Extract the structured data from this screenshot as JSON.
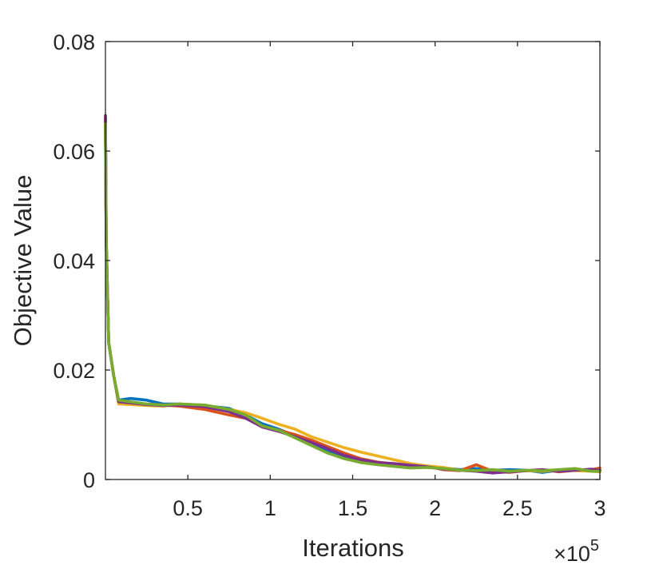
{
  "chart_data": {
    "type": "line",
    "title": "",
    "xlabel": "Iterations",
    "ylabel": "Objective Value",
    "x_exponent_label": "×10",
    "x_exponent": "5",
    "xlim": [
      0,
      3
    ],
    "ylim": [
      0,
      0.08
    ],
    "x_ticks": [
      0.5,
      1,
      1.5,
      2,
      2.5,
      3
    ],
    "x_tick_labels": [
      "0.5",
      "1",
      "1.5",
      "2",
      "2.5",
      "3"
    ],
    "y_ticks": [
      0,
      0.02,
      0.04,
      0.06,
      0.08
    ],
    "y_tick_labels": [
      "0",
      "0.02",
      "0.04",
      "0.06",
      "0.08"
    ],
    "grid": false,
    "legend": "none",
    "series": [
      {
        "color": "#0072BD",
        "points": [
          [
            0,
            0.066
          ],
          [
            0.005,
            0.043
          ],
          [
            0.02,
            0.025
          ],
          [
            0.05,
            0.019
          ],
          [
            0.08,
            0.0145
          ],
          [
            0.15,
            0.0148
          ],
          [
            0.25,
            0.0145
          ],
          [
            0.35,
            0.0138
          ],
          [
            0.45,
            0.0138
          ],
          [
            0.6,
            0.0135
          ],
          [
            0.75,
            0.013
          ],
          [
            0.85,
            0.0118
          ],
          [
            0.95,
            0.0102
          ],
          [
            1.05,
            0.0092
          ],
          [
            1.15,
            0.008
          ],
          [
            1.25,
            0.0068
          ],
          [
            1.35,
            0.0052
          ],
          [
            1.45,
            0.0042
          ],
          [
            1.55,
            0.0034
          ],
          [
            1.65,
            0.003
          ],
          [
            1.75,
            0.0027
          ],
          [
            1.85,
            0.0025
          ],
          [
            1.95,
            0.0023
          ],
          [
            2.05,
            0.0021
          ],
          [
            2.15,
            0.0018
          ],
          [
            2.25,
            0.002
          ],
          [
            2.35,
            0.0017
          ],
          [
            2.45,
            0.0018
          ],
          [
            2.55,
            0.0017
          ],
          [
            2.65,
            0.0013
          ],
          [
            2.75,
            0.0017
          ],
          [
            2.85,
            0.0019
          ],
          [
            2.95,
            0.0016
          ],
          [
            3,
            0.0017
          ]
        ]
      },
      {
        "color": "#D95319",
        "points": [
          [
            0,
            0.066
          ],
          [
            0.005,
            0.044
          ],
          [
            0.02,
            0.025
          ],
          [
            0.05,
            0.019
          ],
          [
            0.08,
            0.0142
          ],
          [
            0.15,
            0.014
          ],
          [
            0.25,
            0.0138
          ],
          [
            0.35,
            0.0136
          ],
          [
            0.45,
            0.0134
          ],
          [
            0.6,
            0.0128
          ],
          [
            0.75,
            0.0118
          ],
          [
            0.85,
            0.0112
          ],
          [
            0.95,
            0.0098
          ],
          [
            1.05,
            0.009
          ],
          [
            1.15,
            0.0082
          ],
          [
            1.25,
            0.0072
          ],
          [
            1.35,
            0.006
          ],
          [
            1.45,
            0.0048
          ],
          [
            1.55,
            0.0038
          ],
          [
            1.65,
            0.0032
          ],
          [
            1.75,
            0.0028
          ],
          [
            1.85,
            0.0027
          ],
          [
            1.95,
            0.0024
          ],
          [
            2.05,
            0.0018
          ],
          [
            2.15,
            0.0016
          ],
          [
            2.25,
            0.0027
          ],
          [
            2.35,
            0.0015
          ],
          [
            2.45,
            0.0013
          ],
          [
            2.55,
            0.0016
          ],
          [
            2.65,
            0.0018
          ],
          [
            2.75,
            0.0014
          ],
          [
            2.85,
            0.0017
          ],
          [
            2.95,
            0.0018
          ],
          [
            3,
            0.0021
          ]
        ]
      },
      {
        "color": "#EDB120",
        "points": [
          [
            0,
            0.066
          ],
          [
            0.005,
            0.043
          ],
          [
            0.02,
            0.025
          ],
          [
            0.05,
            0.019
          ],
          [
            0.08,
            0.0138
          ],
          [
            0.15,
            0.0137
          ],
          [
            0.25,
            0.0135
          ],
          [
            0.35,
            0.0134
          ],
          [
            0.45,
            0.0138
          ],
          [
            0.6,
            0.0136
          ],
          [
            0.75,
            0.0128
          ],
          [
            0.85,
            0.0122
          ],
          [
            0.95,
            0.0112
          ],
          [
            1.05,
            0.0101
          ],
          [
            1.15,
            0.0092
          ],
          [
            1.25,
            0.0078
          ],
          [
            1.35,
            0.0068
          ],
          [
            1.45,
            0.0058
          ],
          [
            1.55,
            0.005
          ],
          [
            1.65,
            0.0043
          ],
          [
            1.75,
            0.0036
          ],
          [
            1.85,
            0.0029
          ],
          [
            1.95,
            0.0025
          ],
          [
            2.05,
            0.0022
          ],
          [
            2.15,
            0.0017
          ],
          [
            2.25,
            0.0016
          ],
          [
            2.35,
            0.0018
          ],
          [
            2.45,
            0.0015
          ],
          [
            2.55,
            0.0016
          ],
          [
            2.65,
            0.0015
          ],
          [
            2.75,
            0.0017
          ],
          [
            2.85,
            0.0016
          ],
          [
            2.95,
            0.0015
          ],
          [
            3,
            0.0014
          ]
        ]
      },
      {
        "color": "#7E2F8E",
        "points": [
          [
            0,
            0.0665
          ],
          [
            0.005,
            0.044
          ],
          [
            0.02,
            0.025
          ],
          [
            0.05,
            0.019
          ],
          [
            0.08,
            0.0142
          ],
          [
            0.15,
            0.014
          ],
          [
            0.25,
            0.0137
          ],
          [
            0.35,
            0.0135
          ],
          [
            0.45,
            0.0136
          ],
          [
            0.6,
            0.0133
          ],
          [
            0.75,
            0.0124
          ],
          [
            0.85,
            0.0112
          ],
          [
            0.95,
            0.0096
          ],
          [
            1.05,
            0.0088
          ],
          [
            1.15,
            0.0078
          ],
          [
            1.25,
            0.0068
          ],
          [
            1.35,
            0.0056
          ],
          [
            1.45,
            0.0044
          ],
          [
            1.55,
            0.0036
          ],
          [
            1.65,
            0.0031
          ],
          [
            1.75,
            0.0029
          ],
          [
            1.85,
            0.0026
          ],
          [
            1.95,
            0.0023
          ],
          [
            2.05,
            0.0019
          ],
          [
            2.15,
            0.0017
          ],
          [
            2.25,
            0.0015
          ],
          [
            2.35,
            0.0012
          ],
          [
            2.45,
            0.0014
          ],
          [
            2.55,
            0.0016
          ],
          [
            2.65,
            0.0018
          ],
          [
            2.75,
            0.0015
          ],
          [
            2.85,
            0.0017
          ],
          [
            2.95,
            0.0019
          ],
          [
            3,
            0.0016
          ]
        ]
      },
      {
        "color": "#77AC30",
        "points": [
          [
            0,
            0.065
          ],
          [
            0.005,
            0.043
          ],
          [
            0.02,
            0.025
          ],
          [
            0.05,
            0.019
          ],
          [
            0.08,
            0.0145
          ],
          [
            0.15,
            0.0142
          ],
          [
            0.25,
            0.0138
          ],
          [
            0.35,
            0.0136
          ],
          [
            0.45,
            0.0138
          ],
          [
            0.6,
            0.0136
          ],
          [
            0.75,
            0.0128
          ],
          [
            0.85,
            0.0118
          ],
          [
            0.95,
            0.0098
          ],
          [
            1.05,
            0.009
          ],
          [
            1.15,
            0.0076
          ],
          [
            1.25,
            0.0062
          ],
          [
            1.35,
            0.0048
          ],
          [
            1.45,
            0.0038
          ],
          [
            1.55,
            0.0031
          ],
          [
            1.65,
            0.0027
          ],
          [
            1.75,
            0.0024
          ],
          [
            1.85,
            0.0021
          ],
          [
            1.95,
            0.0022
          ],
          [
            2.05,
            0.002
          ],
          [
            2.15,
            0.0017
          ],
          [
            2.25,
            0.0016
          ],
          [
            2.35,
            0.0018
          ],
          [
            2.45,
            0.0015
          ],
          [
            2.55,
            0.0017
          ],
          [
            2.65,
            0.0016
          ],
          [
            2.75,
            0.0018
          ],
          [
            2.85,
            0.002
          ],
          [
            2.95,
            0.0015
          ],
          [
            3,
            0.0015
          ]
        ]
      }
    ]
  }
}
